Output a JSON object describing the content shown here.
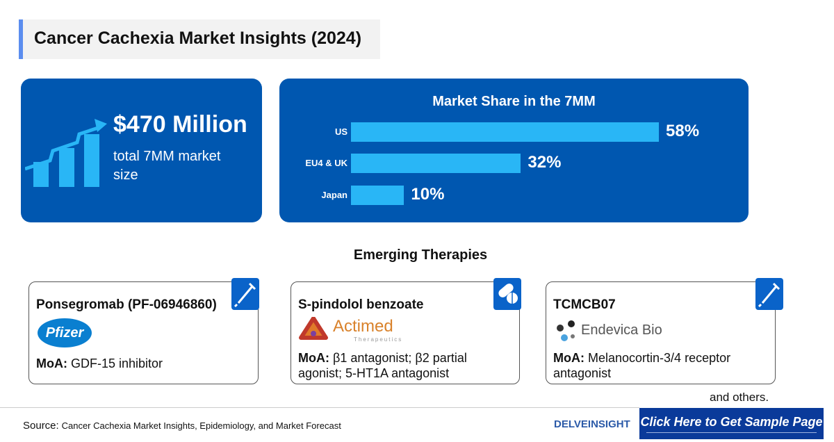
{
  "title": "Cancer Cachexia Market Insights (2024)",
  "market_size": {
    "value": "$470 Million",
    "label": "total 7MM market size",
    "icon": "growth-chart-icon"
  },
  "chart_data": {
    "type": "bar",
    "orientation": "horizontal",
    "title": "Market Share in the 7MM",
    "categories": [
      "US",
      "EU4 & UK",
      "Japan"
    ],
    "values": [
      58,
      32,
      10
    ],
    "data_labels": [
      "58%",
      "32%",
      "10%"
    ],
    "xlim": [
      0,
      58
    ],
    "grid": false,
    "bar_color": "#29b6f6",
    "background": "#0057b0"
  },
  "emerging": {
    "heading": "Emerging Therapies",
    "therapies": [
      {
        "name": "Ponsegromab (PF-06946860)",
        "company": "Pfizer",
        "moa_label": "MoA:",
        "moa": "GDF-15 inhibitor",
        "icon": "syringe-icon"
      },
      {
        "name": "S-pindolol benzoate",
        "company": "Actimed",
        "company_sub": "Therapeutics",
        "moa_label": "MoA:",
        "moa": "β1 antagonist; β2 partial agonist; 5-HT1A antagonist",
        "icon": "pills-icon"
      },
      {
        "name": "TCMCB07",
        "company": "Endevica Bio",
        "moa_label": "MoA:",
        "moa": "Melanocortin-3/4 receptor antagonist",
        "icon": "syringe-icon"
      }
    ],
    "others": "and others."
  },
  "footer": {
    "source_label": "Source:",
    "source": "Cancer Cachexia Market Insights, Epidemiology, and Market Forecast",
    "logo": "DELVEINSIGHT",
    "cta": "Click Here to Get Sample Page"
  },
  "colors": {
    "primary": "#0057b0",
    "accent": "#29b6f6",
    "cta": "#0a3a9a"
  }
}
